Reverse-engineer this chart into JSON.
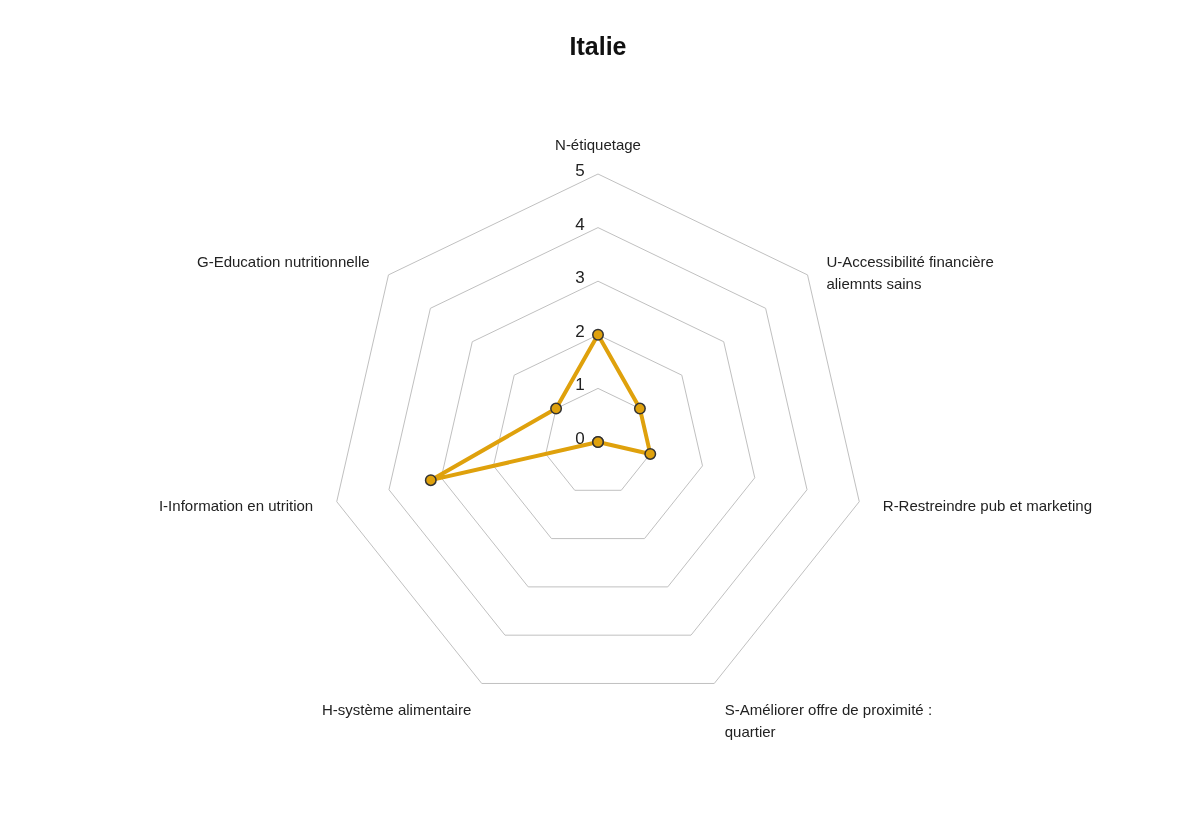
{
  "chart_data": {
    "type": "radar",
    "title": "Italie",
    "categories": [
      "N-étiquetage",
      "U-Accessibilité financière\naliemnts sains",
      "R-Restreindre pub et marketing",
      "S-Améliorer offre de proximité :\nquartier",
      "H-système alimentaire",
      "I-Information en utrition",
      "G-Education nutritionnelle"
    ],
    "series": [
      {
        "color": "#dfa10c",
        "values": [
          2,
          1,
          1,
          0,
          0,
          3.2,
          1
        ]
      }
    ],
    "ylim": [
      0,
      5
    ],
    "yticks": [
      0,
      1,
      2,
      3,
      4,
      5
    ],
    "grid": true,
    "marker": "circle"
  }
}
